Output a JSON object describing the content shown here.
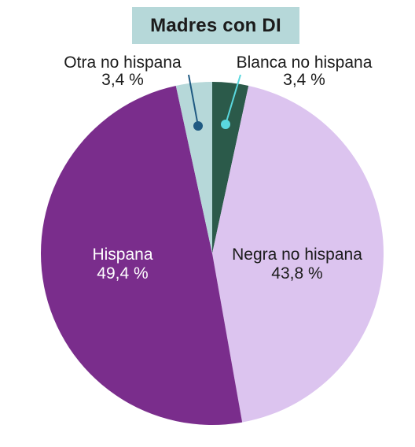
{
  "chart_data": {
    "type": "pie",
    "title": "Madres con DI",
    "slices": [
      {
        "label": "Blanca no hispana",
        "value_label": "3,4 %",
        "value": 3.4,
        "color": "#2b5a4a"
      },
      {
        "label": "Negra no hispana",
        "value_label": "43,8 %",
        "value": 43.8,
        "color": "#dcc4ef"
      },
      {
        "label": "Hispana",
        "value_label": "49,4 %",
        "value": 49.4,
        "color": "#7a2d8c"
      },
      {
        "label": "Otra no hispana",
        "value_label": "3,4 %",
        "value": 3.4,
        "color": "#b6d8d9"
      }
    ],
    "start_angle_deg": 0,
    "direction": "clockwise",
    "callout_colors": {
      "Blanca no hispana": "#5ad8de",
      "Otra no hispana": "#1f5a82"
    }
  }
}
